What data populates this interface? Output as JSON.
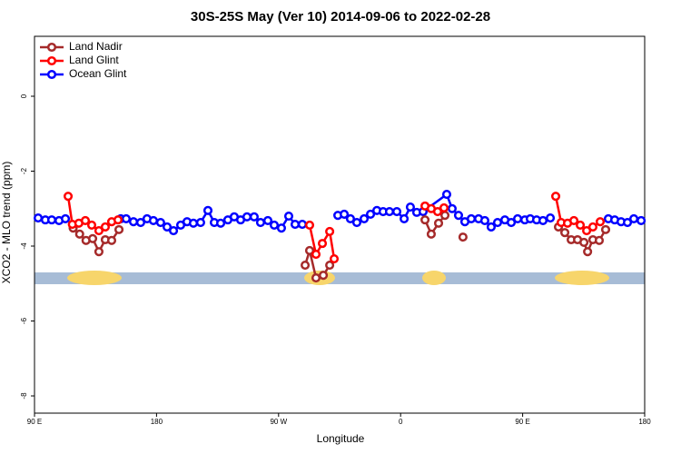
{
  "chart_data": {
    "type": "line",
    "title": "30S-25S May (Ver 10)   2014-09-06 to 2022-02-28",
    "xlabel": "Longitude",
    "ylabel": "XCO2 - MLO trend (ppm)",
    "xlim": [
      90,
      540
    ],
    "ylim": [
      -8.46,
      1.6
    ],
    "xticks": [
      {
        "value": 90,
        "label": "90 E"
      },
      {
        "value": 180,
        "label": "180"
      },
      {
        "value": 270,
        "label": "90 W"
      },
      {
        "value": 360,
        "label": "0"
      },
      {
        "value": 450,
        "label": "90 E"
      },
      {
        "value": 540,
        "label": "180"
      }
    ],
    "yticks": [
      0,
      -2,
      -4,
      -6,
      -8
    ],
    "legend": "top-left",
    "series": [
      {
        "name": "Land Nadir",
        "color": "#a52a2a",
        "x": [
          118.5,
          123.3,
          128,
          132.9,
          137.5,
          142.2,
          146.9,
          152.3,
          null,
          289.6,
          292.9,
          297.6,
          303,
          307.7,
          null,
          378,
          382.6,
          388,
          392.7,
          null,
          406,
          null,
          476.4,
          481.1,
          485.8,
          490.5,
          495.2,
          497.9,
          501.8,
          506.5,
          511.2
        ],
        "values": [
          -3.52,
          -3.68,
          -3.85,
          -3.8,
          -4.15,
          -3.83,
          -3.85,
          -3.56,
          null,
          -4.51,
          -4.12,
          -4.85,
          -4.78,
          -4.51,
          null,
          -3.3,
          -3.68,
          -3.39,
          -3.18,
          null,
          -3.76,
          null,
          -3.49,
          -3.64,
          -3.83,
          -3.83,
          -3.9,
          -4.15,
          -3.83,
          -3.85,
          -3.56
        ]
      },
      {
        "name": "Land Glint",
        "color": "#ff0000",
        "x": [
          114.8,
          117.9,
          122.7,
          127.5,
          132.2,
          137.5,
          142.2,
          146.9,
          151.6,
          null,
          292.9,
          297.6,
          302.3,
          307.7,
          311,
          null,
          378,
          382.6,
          387.3,
          392,
          null,
          474.4,
          478.4,
          483.1,
          487.8,
          492.5,
          497.2,
          501.8,
          507.2
        ],
        "values": [
          -2.67,
          -3.42,
          -3.39,
          -3.32,
          -3.44,
          -3.59,
          -3.49,
          -3.35,
          -3.3,
          null,
          -3.44,
          -4.22,
          -3.93,
          -3.61,
          -4.34,
          null,
          -2.93,
          -3.0,
          -3.08,
          -2.98,
          null,
          -2.67,
          -3.37,
          -3.39,
          -3.32,
          -3.44,
          -3.59,
          -3.49,
          -3.35
        ]
      },
      {
        "name": "Ocean Glint",
        "color": "#0000ff",
        "x": [
          92.7,
          98,
          102.7,
          108.1,
          112.8,
          null,
          153.6,
          157.6,
          163,
          168.3,
          173,
          177.7,
          183,
          187.8,
          192.5,
          197.8,
          202.5,
          207.2,
          212.5,
          217.9,
          222.6,
          227.3,
          232.6,
          237.3,
          242,
          246.7,
          252,
          256.7,
          262.1,
          266.8,
          272.1,
          277.5,
          282.2,
          287.5,
          null,
          313.7,
          318.4,
          323,
          327.7,
          333.1,
          337.8,
          342.5,
          347.1,
          351.8,
          357.2,
          362.6,
          367.2,
          371.9,
          376.6,
          394,
          398,
          402.7,
          407.4,
          412.1,
          417.5,
          422.1,
          426.8,
          431.5,
          436.9,
          441.6,
          446.3,
          451.6,
          455.6,
          460.3,
          465,
          470.4,
          null,
          513.2,
          517.9,
          522.6,
          527.3,
          532,
          537.4
        ],
        "values": [
          -3.25,
          -3.3,
          -3.3,
          -3.32,
          -3.27,
          null,
          -3.27,
          -3.27,
          -3.35,
          -3.37,
          -3.27,
          -3.32,
          -3.37,
          -3.49,
          -3.59,
          -3.44,
          -3.35,
          -3.39,
          -3.37,
          -3.05,
          -3.37,
          -3.39,
          -3.3,
          -3.22,
          -3.3,
          -3.22,
          -3.22,
          -3.37,
          -3.32,
          -3.44,
          -3.52,
          -3.2,
          -3.42,
          -3.42,
          null,
          -3.18,
          -3.15,
          -3.27,
          -3.37,
          -3.27,
          -3.15,
          -3.05,
          -3.08,
          -3.08,
          -3.08,
          -3.27,
          -2.96,
          -3.1,
          -3.08,
          -2.62,
          -3.0,
          -3.18,
          -3.35,
          -3.27,
          -3.27,
          -3.32,
          -3.49,
          -3.37,
          -3.3,
          -3.37,
          -3.27,
          -3.3,
          -3.27,
          -3.3,
          -3.32,
          -3.25,
          null,
          -3.27,
          -3.3,
          -3.35,
          -3.37,
          -3.27,
          -3.32
        ]
      }
    ]
  }
}
